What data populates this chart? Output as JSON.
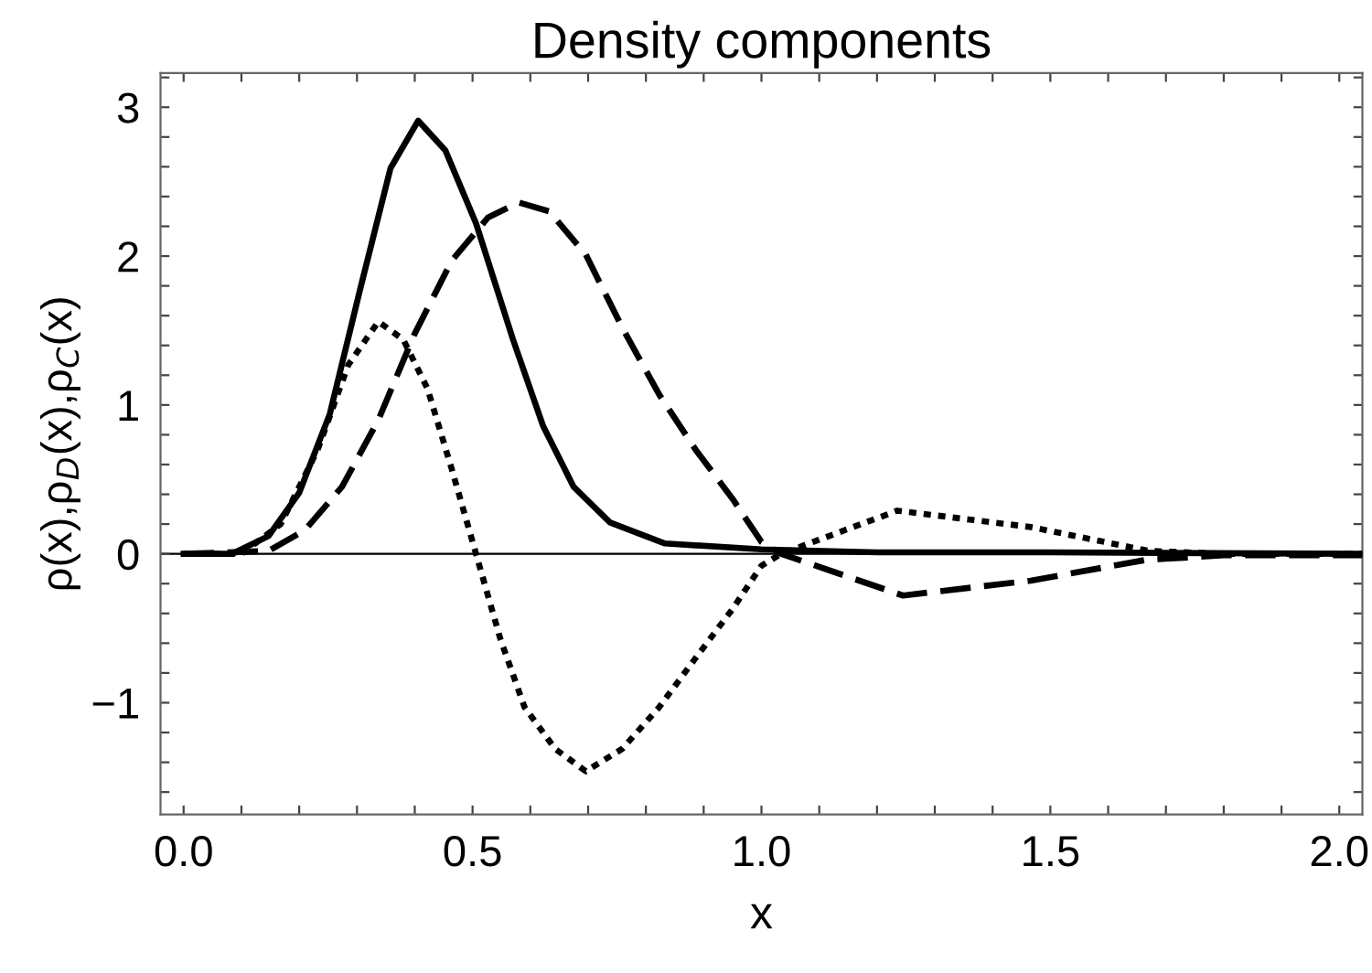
{
  "chart_data": {
    "type": "line",
    "title": "Density components",
    "xlabel": "x",
    "ylabel": "ρ(x),ρ$_{D}$(x),ρ$_{C}$(x)",
    "xlim": [
      -0.04,
      2.04
    ],
    "ylim": [
      -1.75,
      3.23
    ],
    "xticks": [
      {
        "value": 0,
        "label": "0.0"
      },
      {
        "value": 0.1,
        "label": null
      },
      {
        "value": 0.2,
        "label": null
      },
      {
        "value": 0.3,
        "label": null
      },
      {
        "value": 0.4,
        "label": null
      },
      {
        "value": 0.5,
        "label": "0.5"
      },
      {
        "value": 0.6,
        "label": null
      },
      {
        "value": 0.7,
        "label": null
      },
      {
        "value": 0.8,
        "label": null
      },
      {
        "value": 0.9,
        "label": null
      },
      {
        "value": 1,
        "label": "1.0"
      },
      {
        "value": 1.1,
        "label": null
      },
      {
        "value": 1.2,
        "label": null
      },
      {
        "value": 1.3,
        "label": null
      },
      {
        "value": 1.4,
        "label": null
      },
      {
        "value": 1.5,
        "label": "1.5"
      },
      {
        "value": 1.6,
        "label": null
      },
      {
        "value": 1.7,
        "label": null
      },
      {
        "value": 1.8,
        "label": null
      },
      {
        "value": 1.9,
        "label": null
      },
      {
        "value": 2,
        "label": "2.0"
      }
    ],
    "yticks": [
      {
        "value": -1.6,
        "label": null
      },
      {
        "value": -1.4,
        "label": null
      },
      {
        "value": -1.2,
        "label": null
      },
      {
        "value": -1,
        "label": "−1"
      },
      {
        "value": -0.8,
        "label": null
      },
      {
        "value": -0.6,
        "label": null
      },
      {
        "value": -0.4,
        "label": null
      },
      {
        "value": -0.2,
        "label": null
      },
      0,
      {
        "value": 0.2,
        "label": null
      },
      {
        "value": 0.4,
        "label": null
      },
      {
        "value": 0.6,
        "label": null
      },
      {
        "value": 0.8,
        "label": null
      },
      1,
      {
        "value": 1.2,
        "label": null
      },
      {
        "value": 1.4,
        "label": null
      },
      {
        "value": 1.6,
        "label": null
      },
      {
        "value": 1.8,
        "label": null
      },
      2,
      {
        "value": 2.2,
        "label": null
      },
      {
        "value": 2.4,
        "label": null
      },
      {
        "value": 2.6,
        "label": null
      },
      {
        "value": 2.8,
        "label": null
      },
      3,
      {
        "value": 3.2,
        "label": null
      }
    ],
    "ref_lines": [
      {
        "axis": "y",
        "value": 0,
        "color": "#000000"
      }
    ],
    "grid": false,
    "legend": false,
    "series": [
      {
        "color": "#000000",
        "line_style": "solid",
        "x": [
          0,
          0.084,
          0.147,
          0.2,
          0.253,
          0.305,
          0.358,
          0.406,
          0.453,
          0.506,
          0.57,
          0.622,
          0.675,
          0.738,
          0.833,
          1.0,
          1.2,
          1.5,
          2.04
        ],
        "values": [
          0,
          0,
          0.12,
          0.41,
          0.94,
          1.77,
          2.59,
          2.91,
          2.71,
          2.22,
          1.44,
          0.86,
          0.45,
          0.21,
          0.07,
          0.03,
          0.01,
          0.01,
          0
        ]
      },
      {
        "color": "#000000",
        "line_style": "dashed",
        "x": [
          0,
          0.147,
          0.21,
          0.274,
          0.337,
          0.4,
          0.464,
          0.527,
          0.58,
          0.633,
          0.696,
          0.759,
          0.823,
          0.886,
          0.95,
          1.0,
          1.034,
          1.245,
          1.466,
          1.666,
          1.8,
          2.04
        ],
        "values": [
          0,
          0.02,
          0.16,
          0.45,
          0.9,
          1.48,
          1.97,
          2.26,
          2.36,
          2.3,
          2.01,
          1.52,
          1.07,
          0.7,
          0.37,
          0.08,
          0,
          -0.28,
          -0.18,
          -0.04,
          -0.01,
          -0.01
        ]
      },
      {
        "color": "#000000",
        "line_style": "dotted",
        "x": [
          0,
          0.1,
          0.168,
          0.232,
          0.285,
          0.337,
          0.38,
          0.422,
          0.464,
          0.506,
          0.548,
          0.59,
          0.643,
          0.696,
          0.759,
          0.823,
          0.886,
          0.95,
          1.0,
          1.034,
          1.235,
          1.466,
          1.67,
          1.8,
          2.04
        ],
        "values": [
          0,
          0,
          0.2,
          0.7,
          1.27,
          1.56,
          1.44,
          1.11,
          0.57,
          0,
          -0.57,
          -1.03,
          -1.31,
          -1.46,
          -1.31,
          -1.03,
          -0.7,
          -0.37,
          -0.08,
          0,
          0.29,
          0.18,
          0.02,
          0,
          0
        ]
      }
    ]
  }
}
